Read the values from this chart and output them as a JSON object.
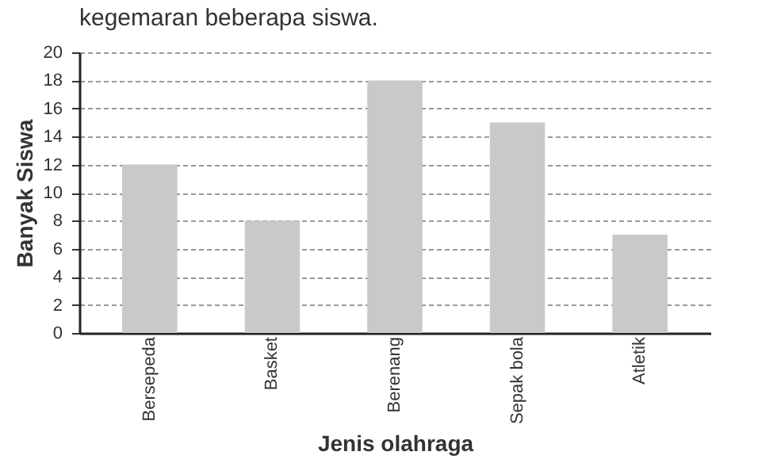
{
  "chart_data": {
    "type": "bar",
    "title": "kegemaran beberapa siswa.",
    "xlabel": "Jenis olahraga",
    "ylabel": "Banyak Siswa",
    "categories": [
      "Bersepeda",
      "Basket",
      "Berenang",
      "Sepak bola",
      "Atletik"
    ],
    "values": [
      12,
      8,
      18,
      15,
      7
    ],
    "color": "#c9c9c9",
    "ylim": [
      0,
      20
    ],
    "yticks": [
      0,
      2,
      4,
      6,
      8,
      10,
      12,
      14,
      16,
      18,
      20
    ],
    "grid": "y"
  }
}
